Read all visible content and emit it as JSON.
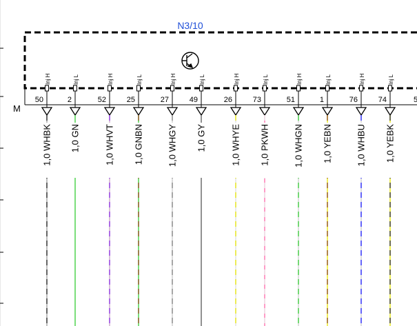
{
  "module": {
    "name": "N3/10",
    "name_color": "#1f4fd8",
    "symbol": "transistor-icon"
  },
  "row_label": "M",
  "edge_pin": "5",
  "pins": [
    {
      "number": "50",
      "tag": "Inj H",
      "wire": "1,0 WHBK",
      "colors": [
        "#9a9a9a",
        "#222222"
      ],
      "dashed": true
    },
    {
      "number": "2",
      "tag": "Inj L",
      "wire": "1,0 GN",
      "colors": [
        "#33cc33"
      ],
      "dashed": false
    },
    {
      "number": "52",
      "tag": "Inj H",
      "wire": "1,0 WHVT",
      "colors": [
        "#c7a0c7",
        "#8a2be2"
      ],
      "dashed": true
    },
    {
      "number": "25",
      "tag": "Inj L",
      "wire": "1,0 GNBN",
      "colors": [
        "#33cc33",
        "#8b4513"
      ],
      "dashed": true
    },
    {
      "number": "27",
      "tag": "Inj H",
      "wire": "1,0 WHGY",
      "colors": [
        "#c8c8c8",
        "#808080"
      ],
      "dashed": true
    },
    {
      "number": "49",
      "tag": "Inj L",
      "wire": "1,0 GY",
      "colors": [
        "#555555"
      ],
      "dashed": false
    },
    {
      "number": "26",
      "tag": "Inj H",
      "wire": "1,0 WHYE",
      "colors": [
        "#dddddd",
        "#e6e600"
      ],
      "dashed": true
    },
    {
      "number": "73",
      "tag": "Inj L",
      "wire": "1,0 PKWH",
      "colors": [
        "#ff66aa",
        "#e8e8e8"
      ],
      "dashed": true
    },
    {
      "number": "51",
      "tag": "Inj H",
      "wire": "1,0 WHGN",
      "colors": [
        "#cccccc",
        "#33cc33"
      ],
      "dashed": true
    },
    {
      "number": "1",
      "tag": "Inj L",
      "wire": "1,0 YEBN",
      "colors": [
        "#e6e600",
        "#8b4513"
      ],
      "dashed": true
    },
    {
      "number": "76",
      "tag": "Inj H",
      "wire": "1,0 WHBU",
      "colors": [
        "#cccccc",
        "#1a1aff"
      ],
      "dashed": true
    },
    {
      "number": "74",
      "tag": "Inj L",
      "wire": "1,0 YEBK",
      "colors": [
        "#e6e600",
        "#222222"
      ],
      "dashed": true
    }
  ]
}
